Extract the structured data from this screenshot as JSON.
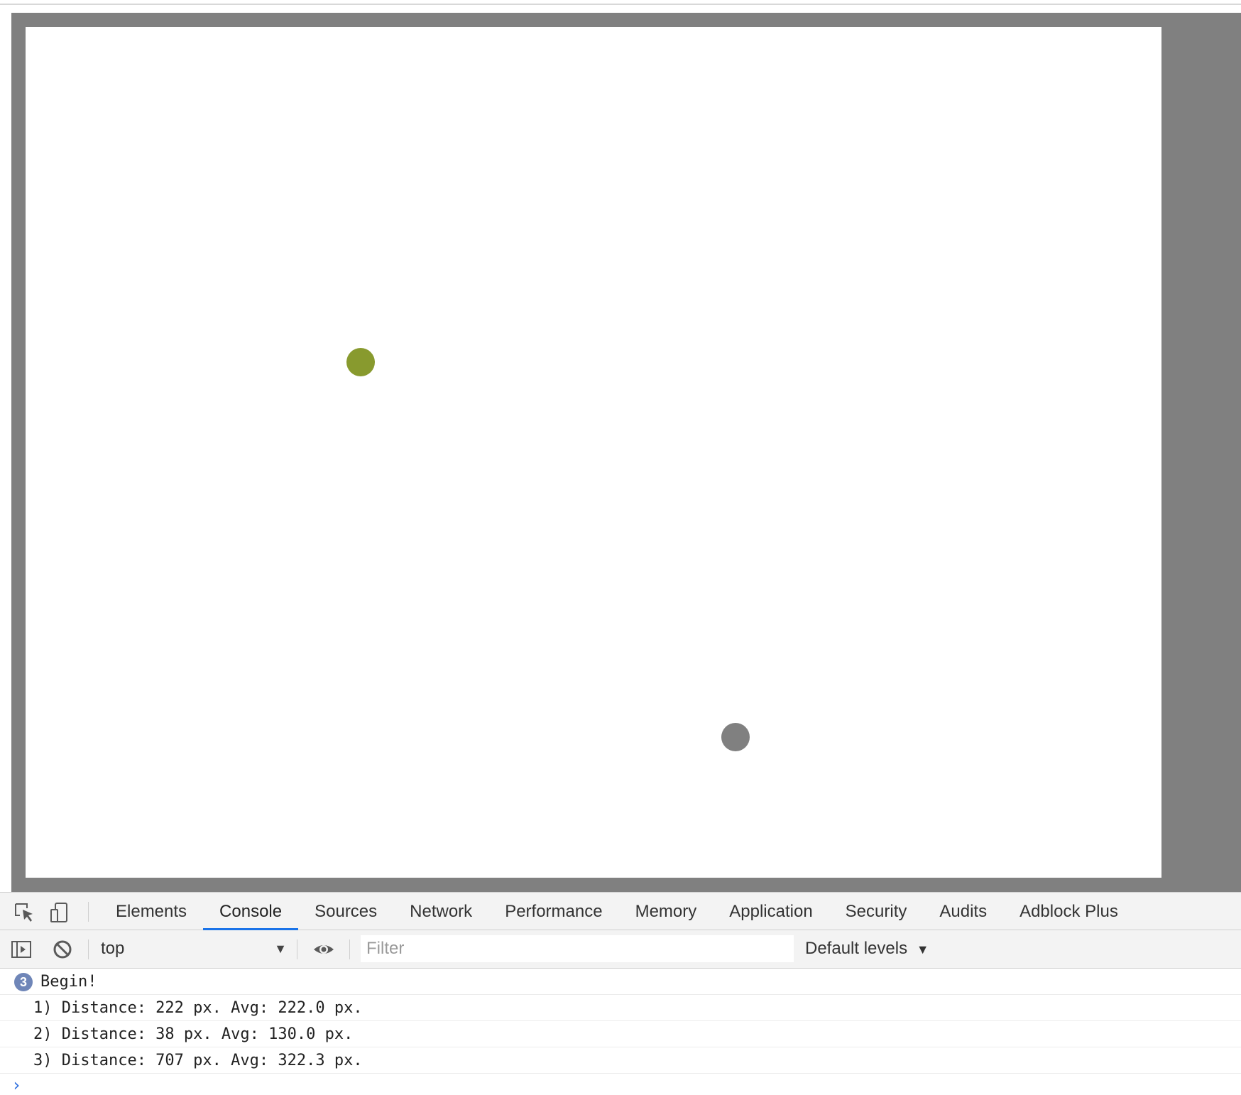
{
  "colors": {
    "frame_bg": "#808080",
    "canvas_bg": "#ffffff",
    "target_dot": "#889a2e",
    "cursor_dot": "#808080",
    "active_tab_underline": "#1a73e8"
  },
  "devtools": {
    "tabs": [
      "Elements",
      "Console",
      "Sources",
      "Network",
      "Performance",
      "Memory",
      "Application",
      "Security",
      "Audits",
      "Adblock Plus"
    ],
    "active_tab": "Console",
    "icons": {
      "inspect": "inspect-element-icon",
      "device": "device-toolbar-icon",
      "sidebar": "show-sidebar-icon",
      "clear": "clear-console-icon",
      "eye": "live-expression-icon"
    }
  },
  "console_toolbar": {
    "context": "top",
    "filter_placeholder": "Filter",
    "levels": "Default levels"
  },
  "console": {
    "group_count": "3",
    "group_label": "Begin!",
    "entries": [
      "1) Distance: 222 px. Avg: 222.0 px.",
      "2) Distance: 38 px. Avg: 130.0 px.",
      "3) Distance: 707 px. Avg: 322.3 px."
    ],
    "prompt": "›"
  }
}
